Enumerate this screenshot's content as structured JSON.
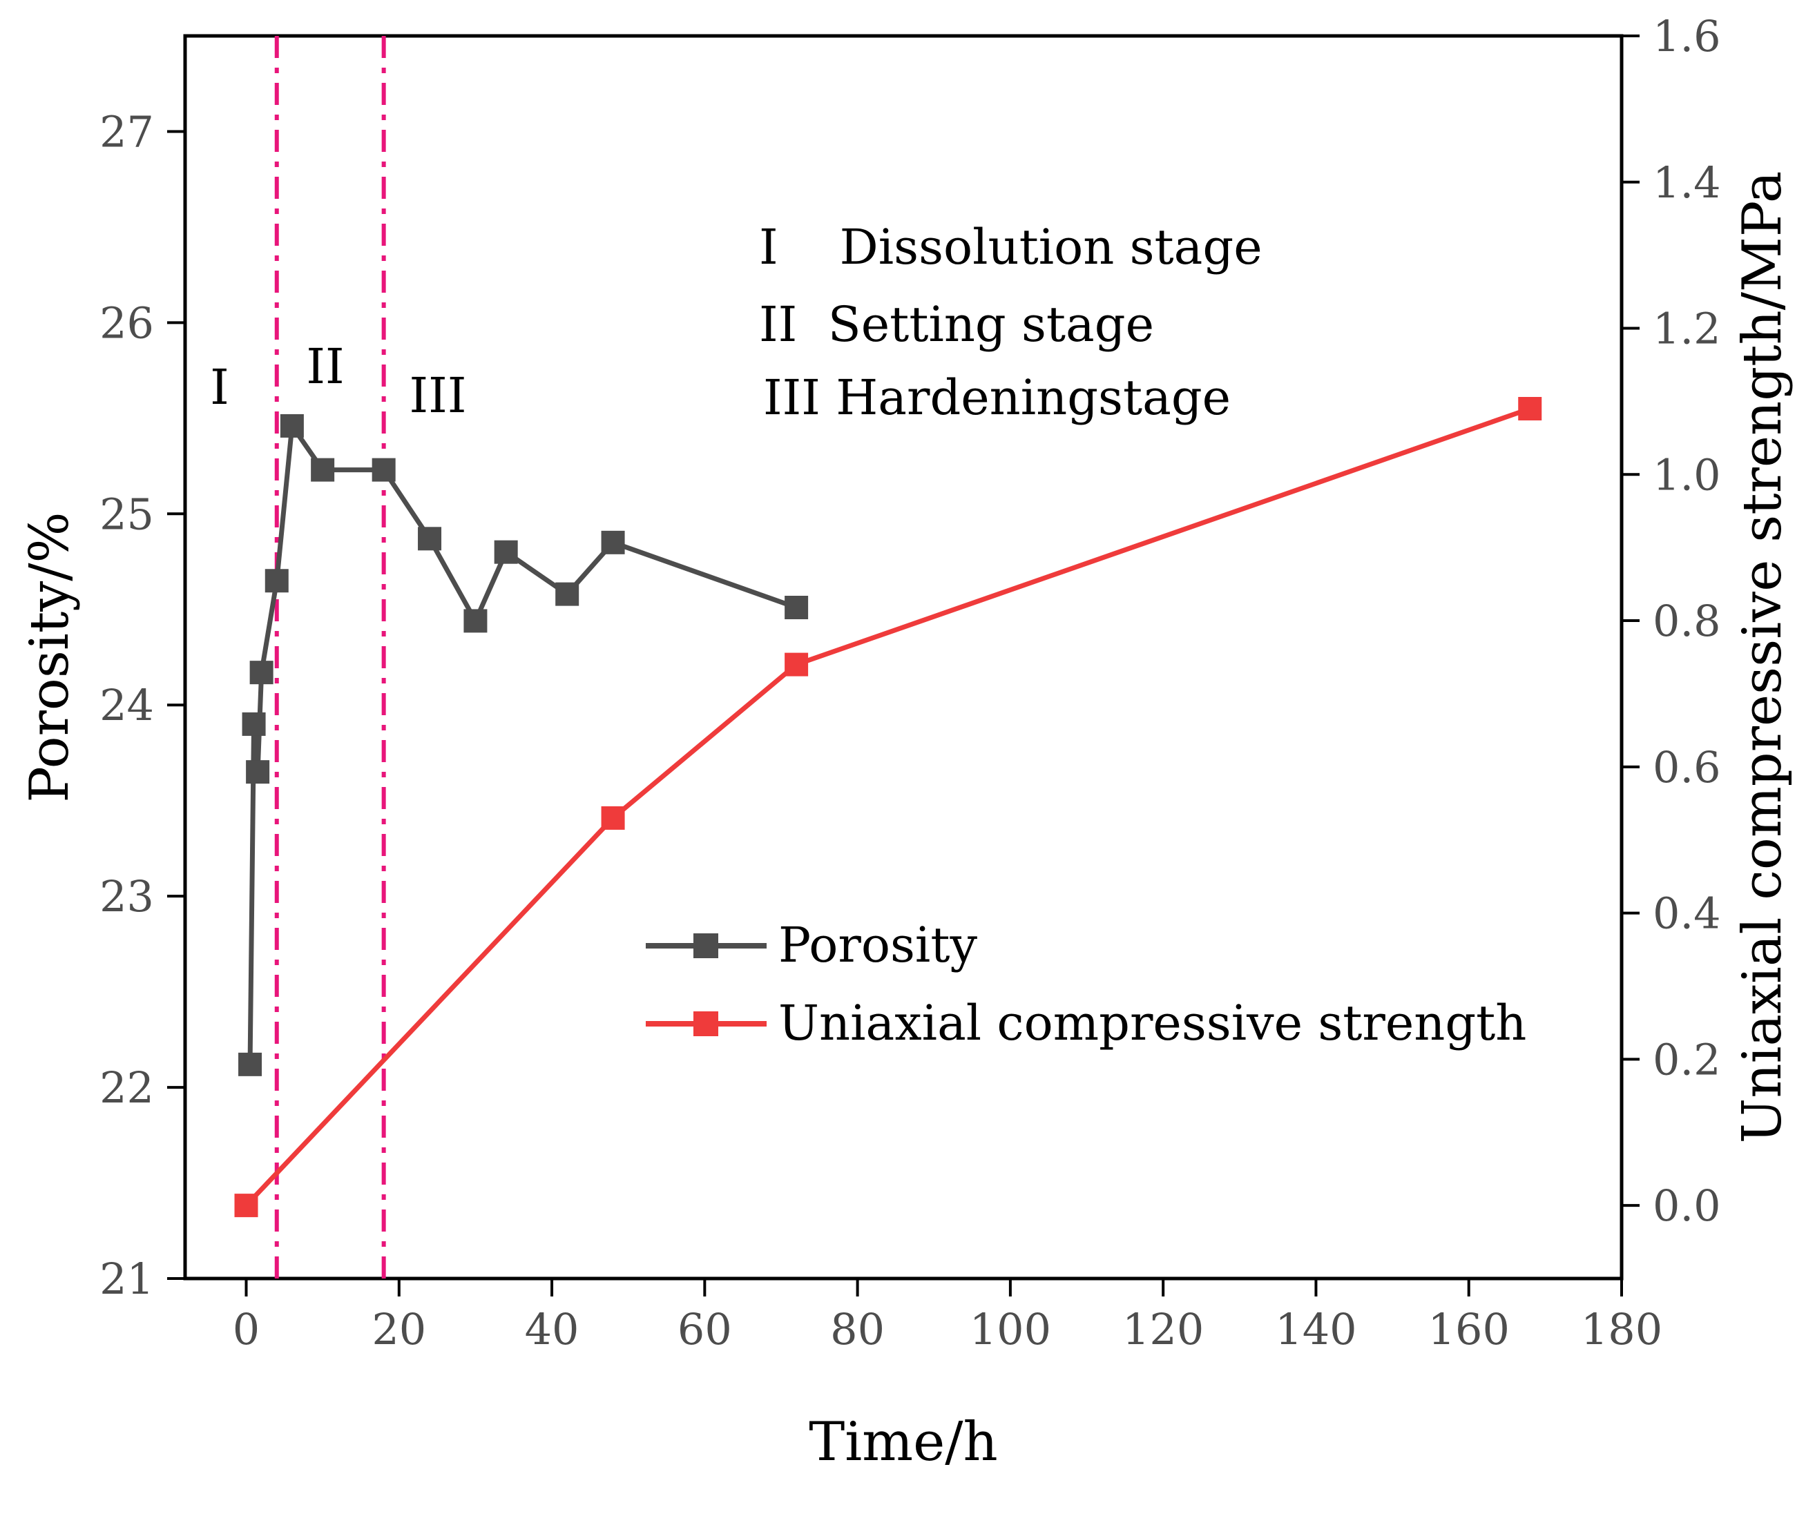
{
  "chart_data": {
    "type": "line",
    "xlabel": "Time/h",
    "ylabel_left": "Porosity/%",
    "ylabel_right": "Uniaxial compressive strength/MPa",
    "xlim": [
      -8,
      180
    ],
    "ylim_left": [
      21,
      27.5
    ],
    "ylim_right": [
      -0.1,
      1.6
    ],
    "x_ticks": [
      0,
      20,
      40,
      60,
      80,
      100,
      120,
      140,
      160,
      180
    ],
    "y_left_ticks": [
      21,
      22,
      23,
      24,
      25,
      26,
      27
    ],
    "y_right_ticks": [
      "0.0",
      "0.2",
      "0.4",
      "0.6",
      "0.8",
      "1.0",
      "1.2",
      "1.4",
      "1.6"
    ],
    "grid": false,
    "series": [
      {
        "name": "Porosity",
        "axis": "left",
        "color": "#4d4d4d",
        "marker": "square",
        "x": [
          0.5,
          1,
          1.5,
          2,
          4,
          6,
          10,
          18,
          24,
          30,
          34,
          42,
          48,
          72
        ],
        "y": [
          22.12,
          23.9,
          23.65,
          24.17,
          24.65,
          25.46,
          25.23,
          25.23,
          24.87,
          24.44,
          24.8,
          24.58,
          24.85,
          24.51
        ]
      },
      {
        "name": "Uniaxial compressive strength",
        "axis": "right",
        "color": "#ef3b3b",
        "marker": "square",
        "x": [
          0,
          48,
          72,
          168
        ],
        "y": [
          0.0,
          0.53,
          0.74,
          1.09
        ]
      }
    ],
    "stage_boundaries": {
      "x": [
        4,
        18
      ],
      "color": "#e8157a"
    },
    "stage_labels": [
      "I",
      "II",
      "III"
    ],
    "annotations": [
      "I    Dissolution stage",
      "II  Setting stage",
      "III Hardeningstage"
    ],
    "legend_position": "center-right"
  }
}
